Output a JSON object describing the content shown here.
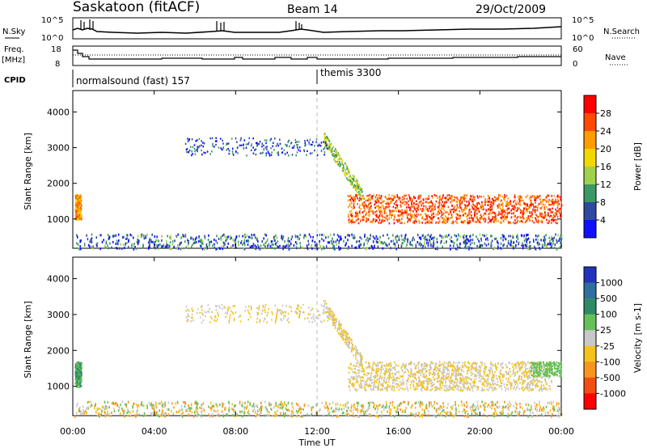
{
  "header": {
    "station": "Saskatoon (fitACF)",
    "beam": "Beam 14",
    "date": "29/Oct/2009"
  },
  "top_panel": {
    "left_label": "N.Sky",
    "left_ticks": [
      "10^5",
      "10^0"
    ],
    "right_ticks": [
      "10^5",
      "10^0"
    ],
    "right_label": "N.Search"
  },
  "freq_panel": {
    "left_label_1": "Freq.",
    "left_label_2": "[MHz]",
    "left_ticks": [
      "18",
      "8"
    ],
    "right_ticks": [
      "60",
      "0"
    ],
    "right_label": "Nave"
  },
  "cpid": {
    "label": "CPID",
    "segments": [
      {
        "text": "normalsound (fast) 157",
        "start_hour": 0
      },
      {
        "text": "themis 3300",
        "start_hour": 12
      }
    ]
  },
  "x_axis": {
    "ticks": [
      "00:00",
      "04:00",
      "08:00",
      "12:00",
      "16:00",
      "20:00",
      "00:00"
    ],
    "tick_hours": [
      0,
      4,
      8,
      12,
      16,
      20,
      24
    ],
    "label": "Time UT"
  },
  "power_colorbar": {
    "label": "Power [dB]",
    "ticks": [
      "28",
      "24",
      "20",
      "16",
      "12",
      "8",
      "4"
    ],
    "colors": [
      "#ff0000",
      "#ff4a00",
      "#ff9d00",
      "#f2d800",
      "#9fd14a",
      "#3b9a64",
      "#2e4aa0",
      "#1010ff"
    ]
  },
  "velocity_colorbar": {
    "label": "Velocity [m s-1]",
    "ticks": [
      "1000",
      "500",
      "100",
      "25",
      "-25",
      "-100",
      "-500",
      "-1000"
    ],
    "colors": [
      "#2233bb",
      "#2e6fa0",
      "#2e8a66",
      "#66c05a",
      "#c8c8c8",
      "#f4c21a",
      "#f7951e",
      "#f24d12",
      "#ff0000"
    ]
  },
  "chart_data": [
    {
      "type": "heatmap",
      "title": "",
      "xlabel": "",
      "ylabel": "Slant Range [km]",
      "yticks": [
        "1000",
        "2000",
        "3000",
        "4000"
      ],
      "ylim": [
        180,
        4600
      ],
      "xlim": [
        0,
        24
      ],
      "colorbar": "Power [dB]",
      "regions": [
        {
          "name": "ionospheric scatter (main band)",
          "t_start": 13.5,
          "t_end": 24,
          "range_low": 900,
          "range_high": 1700,
          "power_db": 28
        },
        {
          "name": "descending echo track",
          "t_start": 12.3,
          "t_end": 14.2,
          "range_low": 1700,
          "range_high": 3300,
          "power_db": 16
        },
        {
          "name": "early patch",
          "t_start": 0.1,
          "t_end": 0.4,
          "range_low": 1000,
          "range_high": 1700,
          "power_db": 24
        },
        {
          "name": "far range patches",
          "t_start": 5.5,
          "t_end": 12.5,
          "range_low": 2800,
          "range_high": 3300,
          "power_db": 8
        },
        {
          "name": "ground scatter near range",
          "t_start": 0,
          "t_end": 24,
          "range_low": 200,
          "range_high": 600,
          "power_db": 6
        }
      ]
    },
    {
      "type": "heatmap",
      "title": "",
      "xlabel": "Time UT",
      "ylabel": "Slant Range [km]",
      "yticks": [
        "1000",
        "2000",
        "3000",
        "4000"
      ],
      "ylim": [
        180,
        4600
      ],
      "xlim": [
        0,
        24
      ],
      "colorbar": "Velocity [m s-1]",
      "regions": [
        {
          "name": "main band",
          "t_start": 13.5,
          "t_end": 23.5,
          "range_low": 900,
          "range_high": 1700,
          "velocity": 0
        },
        {
          "name": "descending echo track",
          "t_start": 12.3,
          "t_end": 14.2,
          "range_low": 1700,
          "range_high": 3300,
          "velocity": 0
        },
        {
          "name": "late green band",
          "t_start": 22.5,
          "t_end": 24,
          "range_low": 1300,
          "range_high": 1700,
          "velocity": 150
        },
        {
          "name": "early patch",
          "t_start": 0.1,
          "t_end": 0.4,
          "range_low": 1000,
          "range_high": 1700,
          "velocity": 300
        },
        {
          "name": "far range patches",
          "t_start": 5.5,
          "t_end": 12.5,
          "range_low": 2800,
          "range_high": 3300,
          "velocity": 0
        },
        {
          "name": "near range scatter",
          "t_start": 0,
          "t_end": 24,
          "range_low": 200,
          "range_high": 600,
          "velocity": -50
        }
      ]
    }
  ]
}
